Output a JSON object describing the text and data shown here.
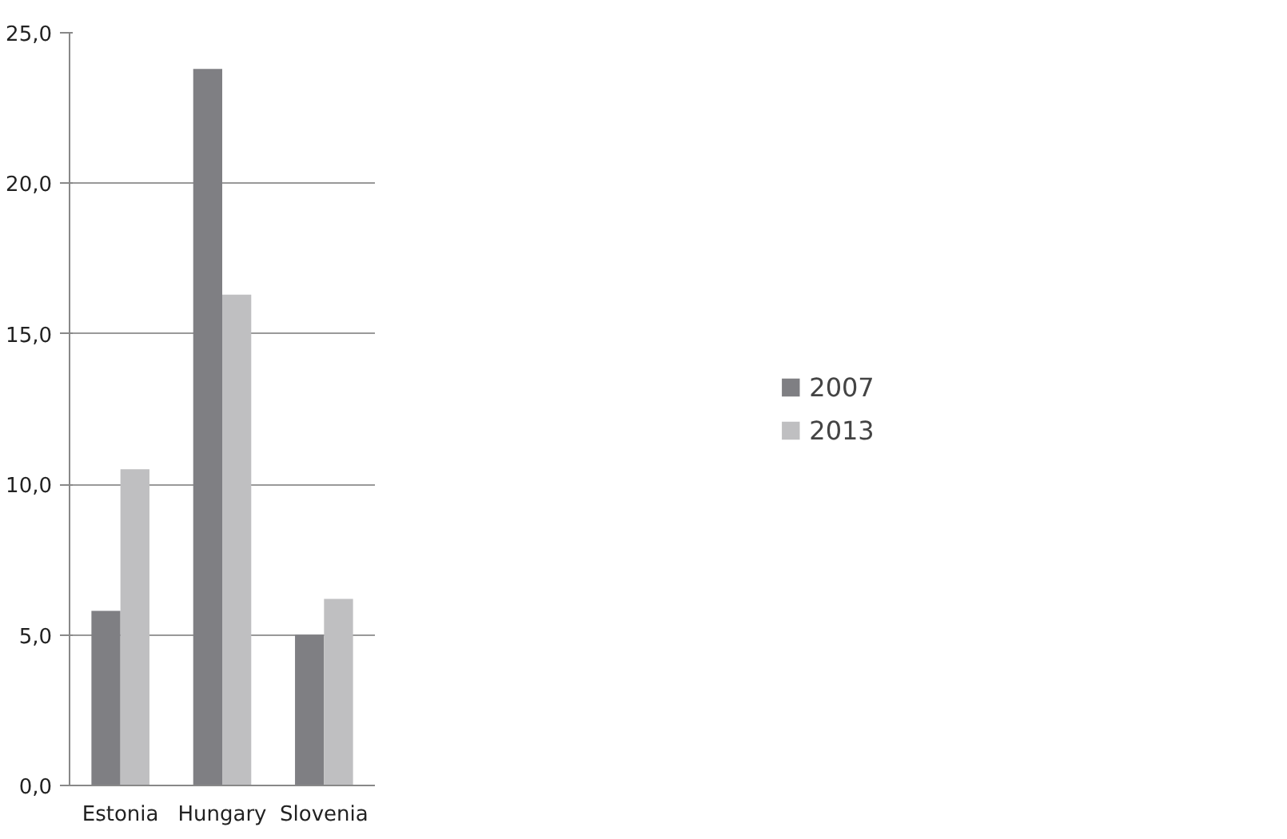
{
  "chart_data": {
    "type": "bar",
    "categories": [
      "Estonia",
      "Hungary",
      "Slovenia"
    ],
    "series": [
      {
        "name": "2007",
        "color": "#7f7f83",
        "values": [
          5.8,
          23.8,
          5.0
        ]
      },
      {
        "name": "2013",
        "color": "#bfbfc1",
        "values": [
          10.5,
          16.3,
          6.2
        ]
      }
    ],
    "ylim": [
      0,
      25
    ],
    "yticks": [
      {
        "value": 0,
        "label": "0,0"
      },
      {
        "value": 5,
        "label": "5,0"
      },
      {
        "value": 10,
        "label": "10,0"
      },
      {
        "value": 15,
        "label": "15,0"
      },
      {
        "value": 20,
        "label": "20,0"
      },
      {
        "value": 25,
        "label": "25,0"
      }
    ],
    "grid": "y",
    "legend": "right"
  }
}
